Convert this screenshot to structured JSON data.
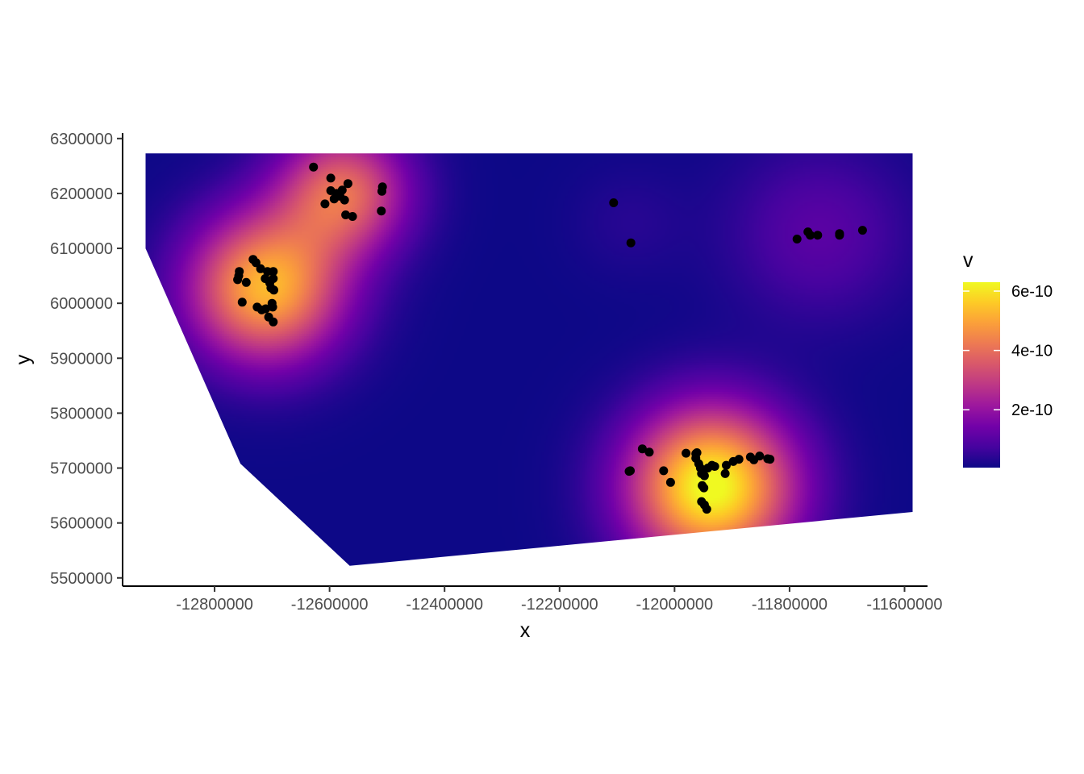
{
  "chart_data": {
    "type": "heatmap",
    "xlabel": "x",
    "ylabel": "y",
    "xlim": [
      -12960000,
      -11560000
    ],
    "ylim": [
      5485000,
      6310000
    ],
    "x_ticks": [
      -12800000,
      -12600000,
      -12400000,
      -12200000,
      -12000000,
      -11800000,
      -11600000
    ],
    "x_tick_labels": [
      "-12800000",
      "-12600000",
      "-12400000",
      "-12200000",
      "-12000000",
      "-11800000",
      "-11600000"
    ],
    "y_ticks": [
      5500000,
      5600000,
      5700000,
      5800000,
      5900000,
      6000000,
      6100000,
      6200000,
      6300000
    ],
    "y_tick_labels": [
      "5500000",
      "5600000",
      "5700000",
      "5800000",
      "5900000",
      "6000000",
      "6100000",
      "6200000",
      "6300000"
    ],
    "grid": false,
    "surface": {
      "boundary": [
        [
          -12920000,
          6273000
        ],
        [
          -11586000,
          6273000
        ],
        [
          -11586000,
          5620000
        ],
        [
          -12565000,
          5522000
        ],
        [
          -12755000,
          5708000
        ],
        [
          -12920000,
          6100000
        ]
      ],
      "hotspots": [
        {
          "x": -12712000,
          "y": 6030000,
          "peak": 5.2e-10,
          "spread": 95000
        },
        {
          "x": -12578000,
          "y": 6205000,
          "peak": 3.8e-10,
          "spread": 80000
        },
        {
          "x": -11938000,
          "y": 5668000,
          "peak": 6.4e-10,
          "spread": 100000
        },
        {
          "x": -11750000,
          "y": 6130000,
          "peak": 1e-10,
          "spread": 110000
        },
        {
          "x": -12080000,
          "y": 6150000,
          "peak": 3e-11,
          "spread": 70000
        }
      ],
      "base": 5e-12
    },
    "points": [
      [
        -12628000,
        6248000
      ],
      [
        -12598000,
        6228000
      ],
      [
        -12598000,
        6205000
      ],
      [
        -12588000,
        6200000
      ],
      [
        -12578000,
        6206000
      ],
      [
        -12568000,
        6218000
      ],
      [
        -12582000,
        6195000
      ],
      [
        -12574000,
        6188000
      ],
      [
        -12592000,
        6190000
      ],
      [
        -12608000,
        6181000
      ],
      [
        -12572000,
        6161000
      ],
      [
        -12560000,
        6158000
      ],
      [
        -12508000,
        6212000
      ],
      [
        -12509000,
        6204000
      ],
      [
        -12510000,
        6168000
      ],
      [
        -12757000,
        6058000
      ],
      [
        -12758000,
        6050000
      ],
      [
        -12760000,
        6043000
      ],
      [
        -12745000,
        6038000
      ],
      [
        -12733000,
        6080000
      ],
      [
        -12728000,
        6074000
      ],
      [
        -12720000,
        6063000
      ],
      [
        -12708000,
        6058000
      ],
      [
        -12698000,
        6058000
      ],
      [
        -12698000,
        6045000
      ],
      [
        -12712000,
        6045000
      ],
      [
        -12704000,
        6037000
      ],
      [
        -12702000,
        6028000
      ],
      [
        -12697000,
        6024000
      ],
      [
        -12700000,
        6000000
      ],
      [
        -12699000,
        5993000
      ],
      [
        -12711000,
        5990000
      ],
      [
        -12726000,
        5993000
      ],
      [
        -12718000,
        5988000
      ],
      [
        -12706000,
        5975000
      ],
      [
        -12698000,
        5966000
      ],
      [
        -12752000,
        6002000
      ],
      [
        -12106000,
        6183000
      ],
      [
        -12076000,
        6110000
      ],
      [
        -11787000,
        6117000
      ],
      [
        -11768000,
        6130000
      ],
      [
        -11764000,
        6124000
      ],
      [
        -11751000,
        6124000
      ],
      [
        -11713000,
        6127000
      ],
      [
        -11713000,
        6124000
      ],
      [
        -11673000,
        6133000
      ],
      [
        -12079000,
        5694000
      ],
      [
        -12077000,
        5695000
      ],
      [
        -12056000,
        5735000
      ],
      [
        -12044000,
        5729000
      ],
      [
        -12019000,
        5695000
      ],
      [
        -12007000,
        5674000
      ],
      [
        -11980000,
        5727000
      ],
      [
        -11963000,
        5726000
      ],
      [
        -11961000,
        5728000
      ],
      [
        -11963000,
        5718000
      ],
      [
        -11958000,
        5708000
      ],
      [
        -11955000,
        5700000
      ],
      [
        -11950000,
        5696000
      ],
      [
        -11953000,
        5690000
      ],
      [
        -11948000,
        5686000
      ],
      [
        -11942000,
        5700000
      ],
      [
        -11935000,
        5705000
      ],
      [
        -11930000,
        5703000
      ],
      [
        -11952000,
        5668000
      ],
      [
        -11949000,
        5664000
      ],
      [
        -11953000,
        5639000
      ],
      [
        -11948000,
        5633000
      ],
      [
        -11944000,
        5625000
      ],
      [
        -11910000,
        5705000
      ],
      [
        -11898000,
        5712000
      ],
      [
        -11888000,
        5716000
      ],
      [
        -11868000,
        5720000
      ],
      [
        -11862000,
        5715000
      ],
      [
        -11852000,
        5722000
      ],
      [
        -11838000,
        5717000
      ],
      [
        -11834000,
        5716000
      ],
      [
        -11912000,
        5690000
      ]
    ],
    "legend": {
      "title": "v",
      "position": "right",
      "min": 5e-12,
      "max": 6.3e-10,
      "ticks": [
        2e-10,
        4e-10,
        6e-10
      ],
      "tick_labels": [
        "2e-10",
        "4e-10",
        "6e-10"
      ]
    },
    "colormap": [
      "#0d0887",
      "#46039f",
      "#7201a8",
      "#9c179e",
      "#bd3786",
      "#d8576b",
      "#ed7953",
      "#fb9f3a",
      "#fdca26",
      "#f0f921"
    ],
    "point_color": "#000000"
  }
}
